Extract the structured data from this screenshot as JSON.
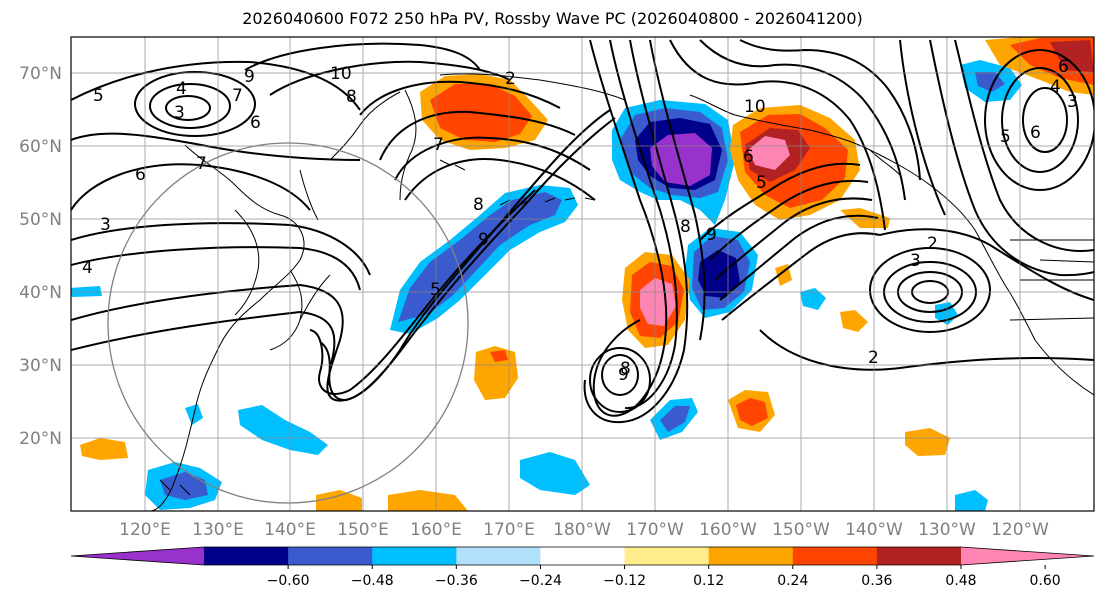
{
  "title": "2026040600 F072 250 hPa PV, Rossby Wave PC (2026040800 - 2026041200)",
  "lat_labels": [
    "70°N",
    "60°N",
    "50°N",
    "40°N",
    "30°N",
    "20°N"
  ],
  "lon_labels": [
    "120°E",
    "130°E",
    "140°E",
    "150°E",
    "160°E",
    "170°E",
    "180°W",
    "170°W",
    "160°W",
    "150°W",
    "140°W",
    "130°W",
    "120°W"
  ],
  "colorbar": {
    "ticks": [
      "−0.60",
      "−0.48",
      "−0.36",
      "−0.24",
      "−0.12",
      "0.12",
      "0.24",
      "0.36",
      "0.48",
      "0.60"
    ],
    "colors": [
      "#9932CC",
      "#00008B",
      "#3A5BCE",
      "#00BFFF",
      "#B0E0FA",
      "#FFFFFF",
      "#FFEC8B",
      "#FFA500",
      "#FF4500",
      "#B22222",
      "#FF86B4"
    ]
  },
  "contour_labels": [
    "5",
    "3",
    "4",
    "9",
    "7",
    "6",
    "10",
    "8",
    "7",
    "6",
    "3",
    "4",
    "5",
    "8",
    "9",
    "7",
    "2",
    "9",
    "10",
    "8",
    "6",
    "5",
    "9",
    "8",
    "2",
    "3",
    "2",
    "6",
    "5",
    "4",
    "3",
    "6"
  ]
}
